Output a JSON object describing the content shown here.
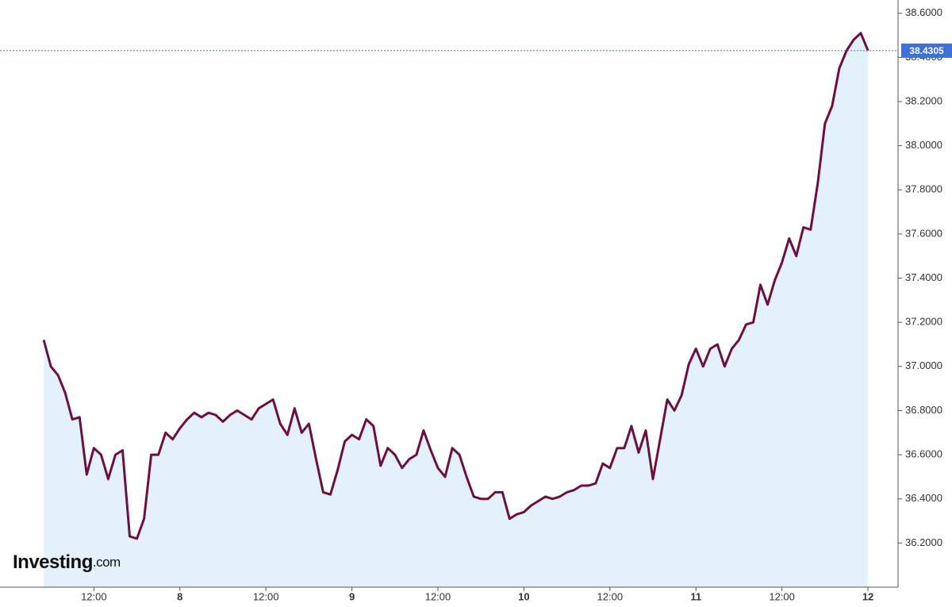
{
  "chart_data": {
    "type": "area",
    "color": "#6b1040",
    "fill_color": "#e3f1fa",
    "x": [
      5,
      6,
      7,
      8,
      9,
      10,
      11,
      12,
      13,
      14,
      15,
      16,
      17,
      18,
      19,
      20,
      21,
      22,
      23,
      24,
      25,
      26,
      27,
      28,
      29,
      30,
      31,
      32,
      33,
      34,
      35,
      36,
      37,
      38,
      39,
      40,
      41,
      42,
      43,
      44,
      45,
      46,
      47,
      48,
      49,
      50,
      51,
      52,
      53,
      54,
      55,
      56,
      57,
      58,
      59,
      60,
      61,
      62,
      63,
      64,
      65,
      66,
      67,
      68,
      69,
      70,
      71,
      72,
      73,
      74,
      75,
      76,
      77,
      78,
      79,
      80,
      81,
      82,
      83,
      84,
      85,
      86,
      87,
      88,
      89,
      90,
      91,
      92,
      93,
      94,
      95,
      96,
      97,
      98,
      99,
      100,
      101,
      102,
      103,
      104,
      105,
      106,
      107,
      108,
      109,
      110,
      111,
      112,
      113,
      114,
      115,
      116,
      117,
      118,
      119,
      120
    ],
    "values": [
      37.12,
      37.0,
      36.96,
      36.88,
      36.76,
      36.77,
      36.51,
      36.63,
      36.6,
      36.49,
      36.6,
      36.62,
      36.23,
      36.22,
      36.31,
      36.6,
      36.6,
      36.7,
      36.67,
      36.72,
      36.76,
      36.79,
      36.77,
      36.79,
      36.78,
      36.75,
      36.78,
      36.8,
      36.78,
      36.76,
      36.81,
      36.83,
      36.85,
      36.74,
      36.69,
      36.81,
      36.7,
      36.74,
      36.58,
      36.43,
      36.42,
      36.53,
      36.66,
      36.69,
      36.67,
      36.76,
      36.73,
      36.55,
      36.63,
      36.6,
      36.54,
      36.58,
      36.6,
      36.71,
      36.62,
      36.54,
      36.5,
      36.63,
      36.6,
      36.5,
      36.41,
      36.4,
      36.4,
      36.43,
      36.43,
      36.31,
      36.33,
      36.34,
      36.37,
      36.39,
      36.41,
      36.4,
      36.41,
      36.43,
      36.44,
      36.46,
      36.46,
      36.47,
      36.56,
      36.54,
      36.63,
      36.63,
      36.73,
      36.61,
      36.71,
      36.49,
      36.67,
      36.85,
      36.8,
      36.87,
      37.01,
      37.08,
      37.0,
      37.08,
      37.1,
      37.0,
      37.08,
      37.12,
      37.19,
      37.2,
      37.37,
      37.28,
      37.39,
      37.47,
      37.58,
      37.5,
      37.63,
      37.62,
      37.83,
      38.1,
      38.18,
      38.35,
      38.43,
      38.48,
      38.51,
      38.4305
    ],
    "xlim": [
      -1.1,
      124.2
    ],
    "xticks": [
      {
        "value": 12,
        "label": "12:00"
      },
      {
        "value": 24,
        "label": "8"
      },
      {
        "value": 36,
        "label": "12:00"
      },
      {
        "value": 48,
        "label": "9"
      },
      {
        "value": 60,
        "label": "12:00"
      },
      {
        "value": 72,
        "label": "10"
      },
      {
        "value": 84,
        "label": "12:00"
      },
      {
        "value": 96,
        "label": "11"
      },
      {
        "value": 108,
        "label": "12:00"
      },
      {
        "value": 120,
        "label": "12"
      }
    ],
    "ylim": [
      36.0,
      38.66
    ],
    "yticks": [
      {
        "value": 36.2,
        "label": "36.2000"
      },
      {
        "value": 36.4,
        "label": "36.4000"
      },
      {
        "value": 36.6,
        "label": "36.6000"
      },
      {
        "value": 36.8,
        "label": "36.8000"
      },
      {
        "value": 37.0,
        "label": "37.0000"
      },
      {
        "value": 37.2,
        "label": "37.2000"
      },
      {
        "value": 37.4,
        "label": "37.4000"
      },
      {
        "value": 37.6,
        "label": "37.6000"
      },
      {
        "value": 37.8,
        "label": "37.8000"
      },
      {
        "value": 38.0,
        "label": "38.0000"
      },
      {
        "value": 38.2,
        "label": "38.2000"
      },
      {
        "value": 38.4,
        "label": "38.4000"
      },
      {
        "value": 38.6,
        "label": "38.6000"
      }
    ],
    "current_price": {
      "value": 38.4305,
      "label": "38.4305",
      "color": "#3d6fd6"
    },
    "logo": {
      "name": "Investing",
      "suffix": ".com"
    }
  }
}
